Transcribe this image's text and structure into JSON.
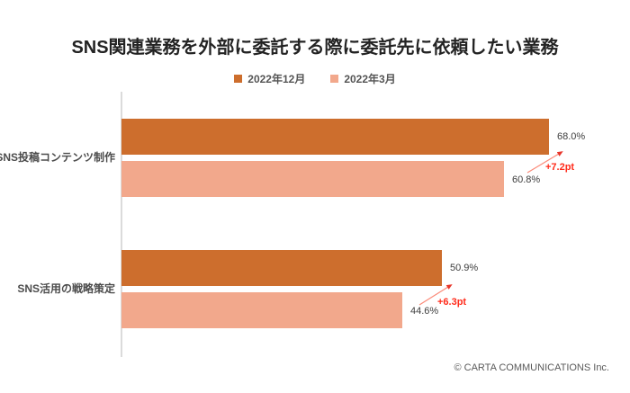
{
  "chart_data": {
    "type": "bar",
    "orientation": "horizontal",
    "title": "SNS関連業務を外部に委託する際に委託先に依頼したい業務",
    "categories": [
      "SNS投稿コンテンツ制作",
      "SNS活用の戦略策定"
    ],
    "series": [
      {
        "name": "2022年12月",
        "color": "#CD6E2D",
        "values": [
          68.0,
          50.9
        ],
        "labels": [
          "68.0%",
          "50.9%"
        ]
      },
      {
        "name": "2022年3月",
        "color": "#F2A88C",
        "values": [
          60.8,
          44.6
        ],
        "labels": [
          "60.8%",
          "44.6%"
        ]
      }
    ],
    "annotations": [
      {
        "target": "SNS投稿コンテンツ制作",
        "label": "+7.2pt"
      },
      {
        "target": "SNS活用の戦略策定",
        "label": "+6.3pt"
      }
    ],
    "xlim": [
      0,
      70
    ],
    "legend_position": "top-center",
    "grid": false
  },
  "colors": {
    "series_2022_12": "#CD6E2D",
    "series_2022_03": "#F2A88C",
    "annotation_red": "#FF2B1A",
    "arrow_line": "#FB8A78",
    "arrow_head": "#E8352A",
    "axis_line": "#DBDBDB"
  },
  "footer": {
    "copyright": "© CARTA COMMUNICATIONS Inc."
  }
}
